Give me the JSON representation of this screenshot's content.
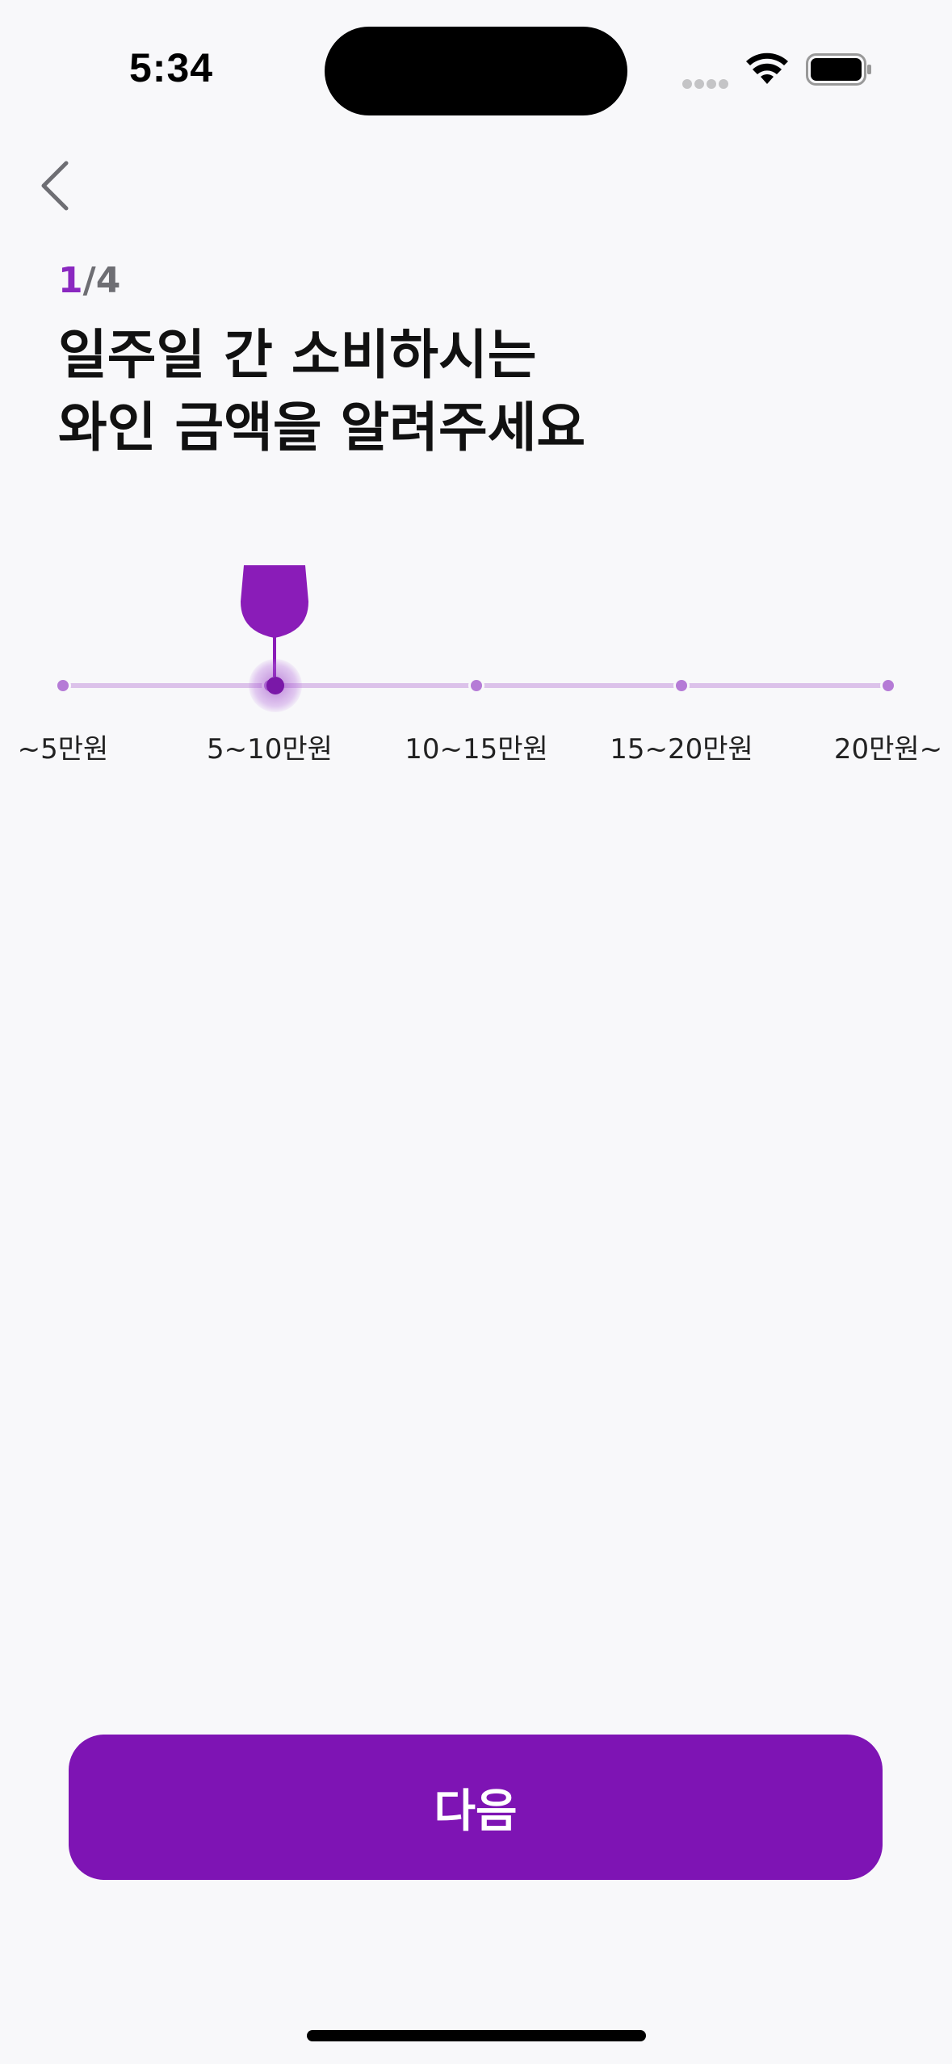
{
  "status_bar": {
    "time": "5:34"
  },
  "progress": {
    "current": "1",
    "total": "/4"
  },
  "title": {
    "line1": "일주일 간 소비하시는",
    "line2": "와인 금액을 알려주세요"
  },
  "slider": {
    "options": [
      "~5만원",
      "5~10만원",
      "10~15만원",
      "15~20만원",
      "20만원~"
    ],
    "selected_index": 1
  },
  "next_button": {
    "label": "다음"
  },
  "colors": {
    "accent": "#7e14b4",
    "track": "#dcc2ea",
    "tick": "#b57bd6"
  }
}
